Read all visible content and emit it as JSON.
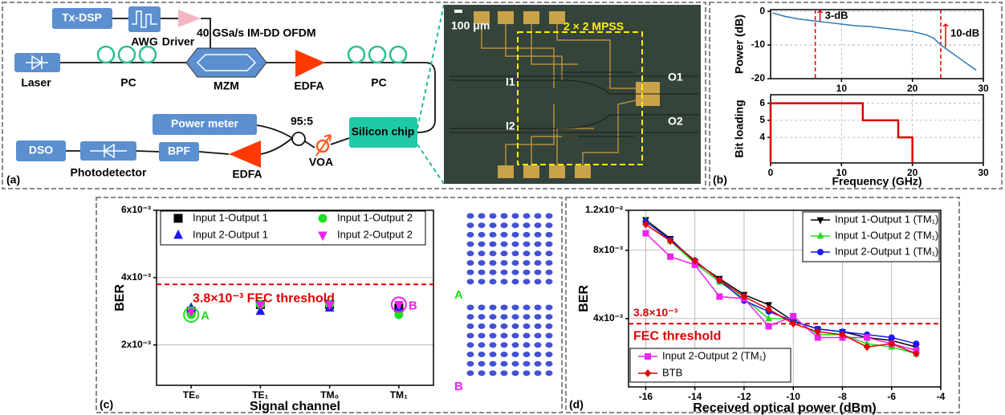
{
  "diagram": {
    "panel_label": "(a)",
    "components": [
      "Tx-DSP",
      "AWG",
      "Driver",
      "Laser",
      "PC",
      "MZM",
      "EDFA",
      "PC",
      "Power meter",
      "Silicon chip",
      "VOA",
      "DSO",
      "Photodetector",
      "BPF",
      "EDFA"
    ],
    "annotations": [
      "40 GSa/s IM-DD OFDM",
      "95:5"
    ]
  },
  "micrograph": {
    "scale_bar": "100 μm",
    "region": "2 × 2 MPSS",
    "ports": [
      "I1",
      "I2",
      "O1",
      "O2"
    ]
  },
  "chart_data": [
    {
      "type": "line",
      "ylabel": "Power (dB)",
      "x": [
        0.3,
        2,
        4,
        6,
        8,
        10,
        12,
        14,
        16,
        18,
        20,
        22,
        23,
        24,
        25,
        26,
        27,
        28,
        29
      ],
      "series": [
        {
          "color": "#2a7ab9",
          "values": [
            -0.5,
            -1.5,
            -2.3,
            -2.8,
            -3.3,
            -3.8,
            -4.3,
            -4.5,
            -5,
            -5.5,
            -6,
            -7,
            -8,
            -10,
            -11.5,
            -13,
            -14.5,
            -16,
            -17.5
          ]
        }
      ],
      "xlim": [
        0,
        30
      ],
      "xticks": [
        10,
        20,
        30
      ],
      "ylim": [
        -20,
        0.5
      ],
      "yticks": [
        -20,
        -10,
        0
      ],
      "grid": true,
      "markers": [
        {
          "x": 6.3,
          "label": "3-dB"
        },
        {
          "x": 24,
          "label": "10-dB"
        }
      ],
      "marker_color": "#e00000"
    },
    {
      "type": "line",
      "panel_label": "(b)",
      "xlabel": "Frequency (GHz)",
      "ylabel": "Bit loading",
      "x": [
        0,
        0,
        13,
        13,
        18,
        18,
        20,
        20
      ],
      "series": [
        {
          "color": "#e00000",
          "values": [
            2.5,
            6,
            6,
            5,
            5,
            4,
            4,
            2.5
          ]
        }
      ],
      "xlim": [
        0,
        30
      ],
      "xticks": [
        0,
        10,
        20,
        30
      ],
      "ylim": [
        2.5,
        6.5
      ],
      "yticks": [
        4,
        5,
        6
      ],
      "grid": true
    },
    {
      "type": "scatter",
      "panel_label": "(c)",
      "xlabel": "Signal channel",
      "ylabel": "BER",
      "categories": [
        "TE₀",
        "TE₁",
        "TM₀",
        "TM₁"
      ],
      "series": [
        {
          "name": "Input 1-Output 1",
          "color": "#000000",
          "marker": "square",
          "values": [
            0.003,
            0.0032,
            0.0032,
            0.0031
          ]
        },
        {
          "name": "Input 1-Output 2",
          "color": "#22dd22",
          "marker": "circle",
          "values": [
            0.0029,
            0.0032,
            0.0032,
            0.0029
          ]
        },
        {
          "name": "Input 2-Output 1",
          "color": "#1a1aee",
          "marker": "triangle-up",
          "values": [
            0.0031,
            0.003,
            0.0031,
            0.0031
          ]
        },
        {
          "name": "Input 2-Output 2",
          "color": "#ee22ee",
          "marker": "triangle-down",
          "values": [
            0.003,
            0.0032,
            0.0032,
            0.0032
          ]
        }
      ],
      "ylim": [
        0.0008,
        0.006
      ],
      "yticks": [
        {
          "value": 0.002,
          "label": "2x10⁻³"
        },
        {
          "value": 0.004,
          "label": "4x10⁻³"
        },
        {
          "value": 0.006,
          "label": "6x10⁻³"
        }
      ],
      "grid": true,
      "threshold": {
        "value": 0.0038,
        "label": "3.8×10⁻³ FEC threshold",
        "color": "#e00000"
      },
      "point_labels": [
        "A",
        "B"
      ]
    },
    {
      "type": "line",
      "panel_label": "(d)",
      "xlabel": "Received optical power (dBm)",
      "ylabel": "BER",
      "x": [
        -16,
        -15,
        -14,
        -13,
        -12,
        -11,
        -10,
        -9,
        -8,
        -7,
        -6,
        -5
      ],
      "series": [
        {
          "name": "Input 1-Output 1 (TM₁)",
          "color": "#000000",
          "marker": "triangle-down",
          "values": [
            0.0109,
            0.009,
            0.0071,
            0.006,
            0.0051,
            0.0046,
            0.0039,
            0.0036,
            0.0035,
            0.0033,
            0.0032,
            0.003
          ]
        },
        {
          "name": "Input 1-Output 2 (TM₁)",
          "color": "#22dd22",
          "marker": "triangle-up",
          "values": [
            0.0108,
            0.0088,
            0.007,
            0.0058,
            0.0049,
            0.004,
            0.004,
            0.0034,
            0.0034,
            0.0031,
            0.003,
            0.0028
          ]
        },
        {
          "name": "Input 2-Output 1 (TM₁)",
          "color": "#1a1aee",
          "marker": "circle",
          "values": [
            0.0107,
            0.0089,
            0.0072,
            0.0059,
            0.0048,
            0.0043,
            0.0039,
            0.0036,
            0.0035,
            0.0034,
            0.0033,
            0.0031
          ]
        },
        {
          "name": "Input 2-Output 2 (TM₁)",
          "color": "#ee22ee",
          "marker": "square",
          "values": [
            0.0095,
            0.0075,
            0.0069,
            0.005,
            0.0049,
            0.0037,
            0.0041,
            0.0033,
            0.0033,
            0.0033,
            0.0031,
            0.0029
          ]
        },
        {
          "name": "BTB",
          "color": "#e00000",
          "marker": "diamond",
          "values": [
            0.0104,
            0.0088,
            0.0072,
            0.0059,
            0.005,
            0.0044,
            0.0038,
            0.0035,
            0.0034,
            0.003,
            0.0031,
            0.0028
          ]
        }
      ],
      "xlim": [
        -16.7,
        -4
      ],
      "xticks": [
        -16,
        -14,
        -12,
        -10,
        -8,
        -6,
        -4
      ],
      "ylim": [
        0.002,
        0.012
      ],
      "log_y": true,
      "yticks": [
        {
          "value": 0.004,
          "label": "4x10⁻³"
        },
        {
          "value": 0.008,
          "label": "8x10⁻³"
        },
        {
          "value": 0.012,
          "label": "1.2x10⁻²"
        }
      ],
      "grid": true,
      "threshold": {
        "value": 0.0038,
        "label": [
          "3.8×10⁻³",
          "FEC threshold"
        ],
        "color": "#e00000"
      }
    }
  ]
}
